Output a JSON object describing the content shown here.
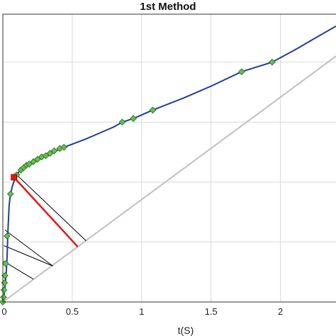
{
  "chart_data": {
    "type": "line",
    "title": "1st Method",
    "xlabel": "t(S)",
    "ylabel": "",
    "xlim": [
      0,
      2.4
    ],
    "ylim": [
      0,
      2.4
    ],
    "x_ticks": [
      0,
      0.5,
      1,
      1.5,
      2
    ],
    "x_tick_labels": [
      "0",
      "0.5",
      "1",
      "1.5",
      "2"
    ],
    "y_ticks": [
      0.5,
      1,
      1.5,
      2
    ],
    "grid": true,
    "colors": {
      "main_line": "#1f3f99",
      "marker_fill": "#6cbf4a",
      "marker_edge": "#2e7d32",
      "reference_line": "#c0c0c0",
      "highlight_segment": "#e01818",
      "projection_lines": "#000000",
      "highlight_point": "#e01818"
    },
    "series": [
      {
        "style": "curve",
        "x": [
          0,
          0.005,
          0.01,
          0.015,
          0.02,
          0.025,
          0.03,
          0.035,
          0.045,
          0.055,
          0.07,
          0.085,
          0.09,
          0.1,
          0.12,
          0.15,
          0.2,
          0.25,
          0.3,
          0.35,
          0.4,
          0.44,
          0.6,
          0.8,
          0.86,
          0.94,
          1.08,
          1.3,
          1.5,
          1.72,
          1.94,
          2.1,
          2.25,
          2.4
        ],
        "y": [
          0,
          0.03,
          0.07,
          0.12,
          0.18,
          0.26,
          0.36,
          0.55,
          0.8,
          0.9,
          0.97,
          1.02,
          1.04,
          1.06,
          1.09,
          1.12,
          1.15,
          1.18,
          1.21,
          1.24,
          1.27,
          1.29,
          1.36,
          1.46,
          1.5,
          1.53,
          1.6,
          1.7,
          1.8,
          1.92,
          2.0,
          2.1,
          2.2,
          2.3
        ]
      },
      {
        "style": "markers",
        "x": [
          0,
          0.005,
          0.008,
          0.012,
          0.015,
          0.02,
          0.03,
          0.055,
          0.1,
          0.13,
          0.15,
          0.17,
          0.19,
          0.22,
          0.25,
          0.28,
          0.31,
          0.34,
          0.37,
          0.41,
          0.44,
          0.86,
          0.94,
          1.08,
          1.72,
          1.94
        ],
        "y": [
          0,
          0.04,
          0.1,
          0.16,
          0.22,
          0.32,
          0.55,
          0.9,
          1.06,
          1.1,
          1.12,
          1.14,
          1.15,
          1.17,
          1.19,
          1.21,
          1.22,
          1.24,
          1.26,
          1.28,
          1.29,
          1.5,
          1.53,
          1.6,
          1.92,
          2.0
        ]
      },
      {
        "style": "reference",
        "x": [
          0,
          2.4
        ],
        "y": [
          0,
          2.05
        ]
      }
    ],
    "highlight_point": {
      "x": 0.08,
      "y": 1.04
    },
    "highlight_segment": {
      "from": [
        0.08,
        1.04
      ],
      "to": [
        0.54,
        0.46
      ]
    },
    "projection_lines": [
      {
        "from": [
          0.1,
          1.06
        ],
        "to": [
          0.6,
          0.51
        ]
      },
      {
        "from": [
          0.015,
          0.6
        ],
        "to": [
          0.36,
          0.3
        ]
      },
      {
        "from": [
          0.008,
          0.47
        ],
        "to": [
          0.36,
          0.3
        ]
      },
      {
        "from": [
          0.005,
          0.34
        ],
        "to": [
          0.22,
          0.19
        ]
      }
    ]
  }
}
